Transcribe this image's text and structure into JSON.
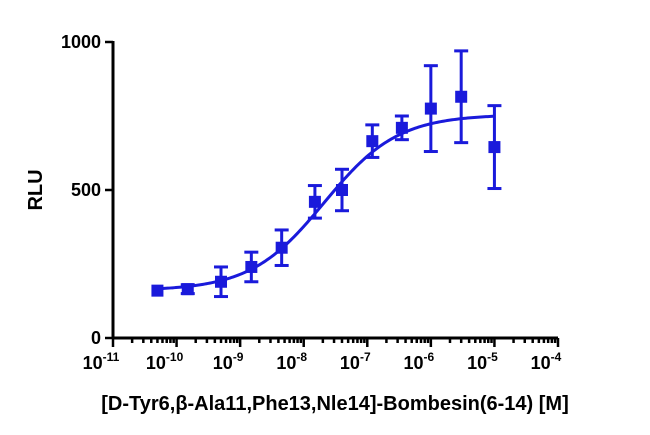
{
  "chart_data": {
    "type": "scatter",
    "xlabel": "[D-Tyr6,β-Ala11,Phe13,Nle14]-Bombesin(6-14) [M]",
    "ylabel": "RLU",
    "x_scale": "log",
    "xlim": [
      1e-11,
      0.0001
    ],
    "ylim": [
      0,
      1000
    ],
    "x_ticks": [
      {
        "base": "10",
        "exp": "-11",
        "value": 1e-11
      },
      {
        "base": "10",
        "exp": "-10",
        "value": 1e-10
      },
      {
        "base": "10",
        "exp": "-9",
        "value": 1e-09
      },
      {
        "base": "10",
        "exp": "-8",
        "value": 1e-08
      },
      {
        "base": "10",
        "exp": "-7",
        "value": 1e-07
      },
      {
        "base": "10",
        "exp": "-6",
        "value": 1e-06
      },
      {
        "base": "10",
        "exp": "-5",
        "value": 1e-05
      },
      {
        "base": "10",
        "exp": "-4",
        "value": 0.0001
      }
    ],
    "y_ticks": [
      "0",
      "500",
      "1000"
    ],
    "y_tick_values": [
      0,
      500,
      1000
    ],
    "grid": false,
    "color": "#1a1adb",
    "series": [
      {
        "x": [
          5e-11,
          1.5e-10,
          5e-10,
          1.5e-09,
          4.5e-09,
          1.5e-08,
          4e-08,
          1.2e-07,
          3.5e-07,
          1e-06,
          3e-06,
          1e-05
        ],
        "y": [
          160,
          165,
          190,
          240,
          305,
          460,
          500,
          665,
          710,
          775,
          815,
          645
        ],
        "error": [
          0,
          15,
          50,
          50,
          60,
          55,
          70,
          55,
          40,
          145,
          155,
          140
        ]
      }
    ],
    "fit_curve": {
      "type": "4PL",
      "bottom": 160,
      "top": 755,
      "ec50": 2.1e-08,
      "hill": 0.75
    }
  }
}
